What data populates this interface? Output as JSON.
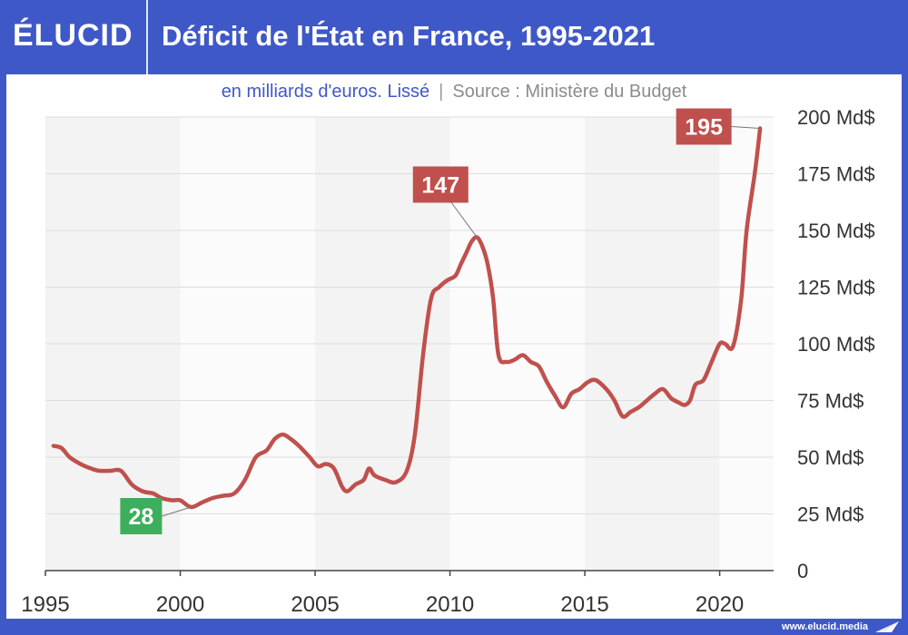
{
  "header": {
    "logo": "ÉLUCID",
    "title": "Déficit de l'État en France, 1995-2021"
  },
  "subtitle": {
    "unit": "en milliards d'euros. Lissé",
    "separator": "|",
    "source": "Source : Ministère du Budget"
  },
  "footer": {
    "url": "www.elucid.media"
  },
  "colors": {
    "brand": "#3f58c8",
    "line": "#c0504d",
    "callout_high": "#c0504d",
    "callout_low": "#3dae5c"
  },
  "chart_data": {
    "type": "line",
    "title": "Déficit de l'État en France, 1995-2021",
    "xlabel": "",
    "ylabel": "",
    "xlim": [
      1995,
      2022
    ],
    "ylim": [
      0,
      200
    ],
    "x_ticks": [
      1995,
      2000,
      2005,
      2010,
      2015,
      2020
    ],
    "y_ticks": [
      {
        "value": 0,
        "label": "0"
      },
      {
        "value": 25,
        "label": "25 Md$"
      },
      {
        "value": 50,
        "label": "50 Md$"
      },
      {
        "value": 75,
        "label": "75 Md$"
      },
      {
        "value": 100,
        "label": "100 Md$"
      },
      {
        "value": 125,
        "label": "125 Md$"
      },
      {
        "value": 150,
        "label": "150 Md$"
      },
      {
        "value": 175,
        "label": "175 Md$"
      },
      {
        "value": 200,
        "label": "200 Md$"
      }
    ],
    "grid": true,
    "series": [
      {
        "name": "Déficit de l'État",
        "x": [
          1995.3,
          1995.6,
          1995.9,
          1996.3,
          1996.7,
          1997.0,
          1997.4,
          1997.8,
          1998.2,
          1998.6,
          1999.0,
          1999.3,
          1999.7,
          2000.0,
          2000.4,
          2000.8,
          2001.2,
          2001.6,
          2002.0,
          2002.4,
          2002.8,
          2003.2,
          2003.5,
          2003.8,
          2004.1,
          2004.4,
          2004.8,
          2005.1,
          2005.4,
          2005.7,
          2006.0,
          2006.2,
          2006.5,
          2006.8,
          2007.0,
          2007.2,
          2007.6,
          2008.0,
          2008.4,
          2008.7,
          2009.0,
          2009.3,
          2009.6,
          2009.9,
          2010.2,
          2010.4,
          2010.6,
          2010.8,
          2011.0,
          2011.2,
          2011.4,
          2011.6,
          2011.8,
          2012.1,
          2012.4,
          2012.7,
          2013.0,
          2013.3,
          2013.6,
          2013.9,
          2014.2,
          2014.5,
          2014.8,
          2015.1,
          2015.4,
          2015.8,
          2016.1,
          2016.4,
          2016.7,
          2017.0,
          2017.3,
          2017.6,
          2017.9,
          2018.2,
          2018.5,
          2018.7,
          2018.9,
          2019.1,
          2019.4,
          2019.7,
          2020.0,
          2020.2,
          2020.5,
          2020.8,
          2021.0,
          2021.3,
          2021.5
        ],
        "values": [
          55,
          54,
          50,
          47,
          45,
          44,
          44,
          44,
          38,
          35,
          34,
          32,
          31,
          31,
          28,
          30,
          32,
          33,
          34,
          40,
          50,
          53,
          58,
          60,
          58,
          55,
          50,
          46,
          47,
          45,
          37,
          35,
          38,
          40,
          45,
          42,
          40,
          39,
          44,
          60,
          95,
          120,
          125,
          128,
          130,
          135,
          140,
          145,
          147,
          143,
          135,
          120,
          95,
          92,
          93,
          95,
          92,
          90,
          83,
          77,
          72,
          78,
          80,
          83,
          84,
          80,
          75,
          68,
          70,
          72,
          75,
          78,
          80,
          76,
          74,
          73,
          75,
          82,
          84,
          92,
          100,
          100,
          99,
          120,
          150,
          175,
          195
        ]
      }
    ],
    "annotations": [
      {
        "label": "28",
        "x": 2000.4,
        "value": 28,
        "style": "low"
      },
      {
        "label": "147",
        "x": 2011.0,
        "value": 147,
        "style": "high"
      },
      {
        "label": "195",
        "x": 2021.5,
        "value": 195,
        "style": "high"
      }
    ]
  }
}
